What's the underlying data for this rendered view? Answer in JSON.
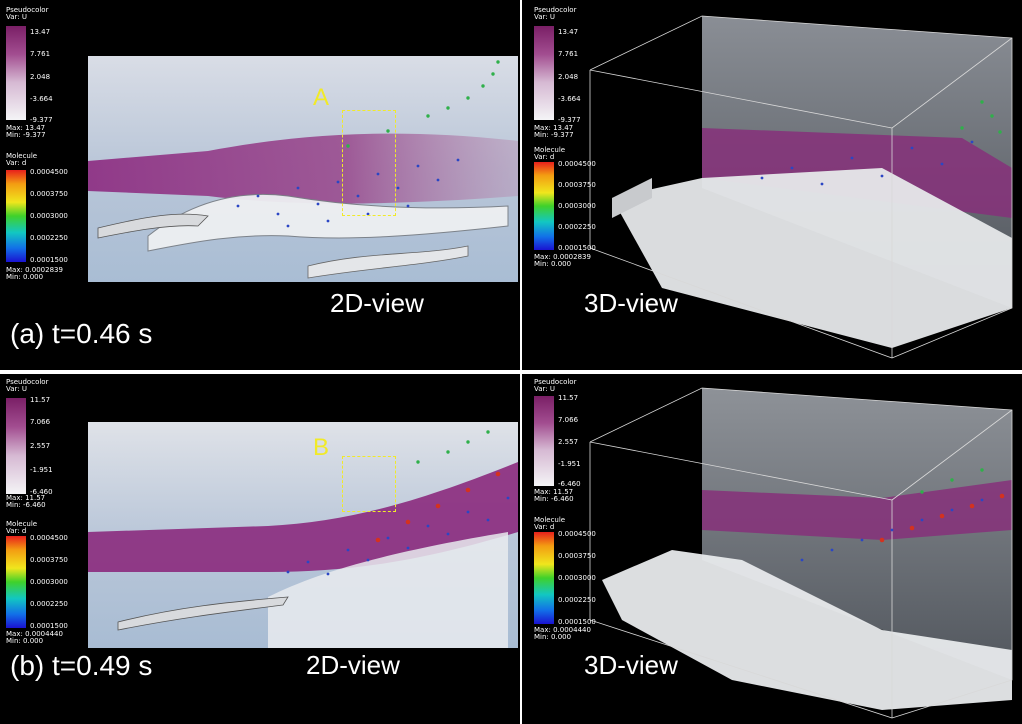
{
  "legends": {
    "pseudocolor_title": "Pseudocolor",
    "pseudocolor_var": "Var: U",
    "molecule_title": "Molecule",
    "molecule_var": "Var: d",
    "mol_ticks": [
      "0.0004500",
      "0.0003750",
      "0.0003000",
      "0.0002250",
      "0.0001500"
    ],
    "min_label": "Min:",
    "max_label": "Max:"
  },
  "views": {
    "view2d": "2D-view",
    "view3d": "3D-view"
  },
  "top": {
    "caption": "(a) t=0.46 s",
    "region_label": "A",
    "u_ticks": [
      "13.47",
      "7.761",
      "2.048",
      "-3.664",
      "-9.377"
    ],
    "u_max": "13.47",
    "u_min": "-9.377",
    "mol_max": "0.0002839",
    "mol_min": "0.000"
  },
  "bottom": {
    "caption": "(b) t=0.49 s",
    "region_label": "B",
    "u_ticks": [
      "11.57",
      "7.066",
      "2.557",
      "-1.951",
      "-6.460"
    ],
    "u_max": "11.57",
    "u_min": "-6.460",
    "mol_max": "0.0004440",
    "mol_min": "0.000"
  },
  "colors": {
    "background": "#000000",
    "highlight": "#f1ea28",
    "jet": "#8b2a7d",
    "field": "#b4c4d8"
  }
}
